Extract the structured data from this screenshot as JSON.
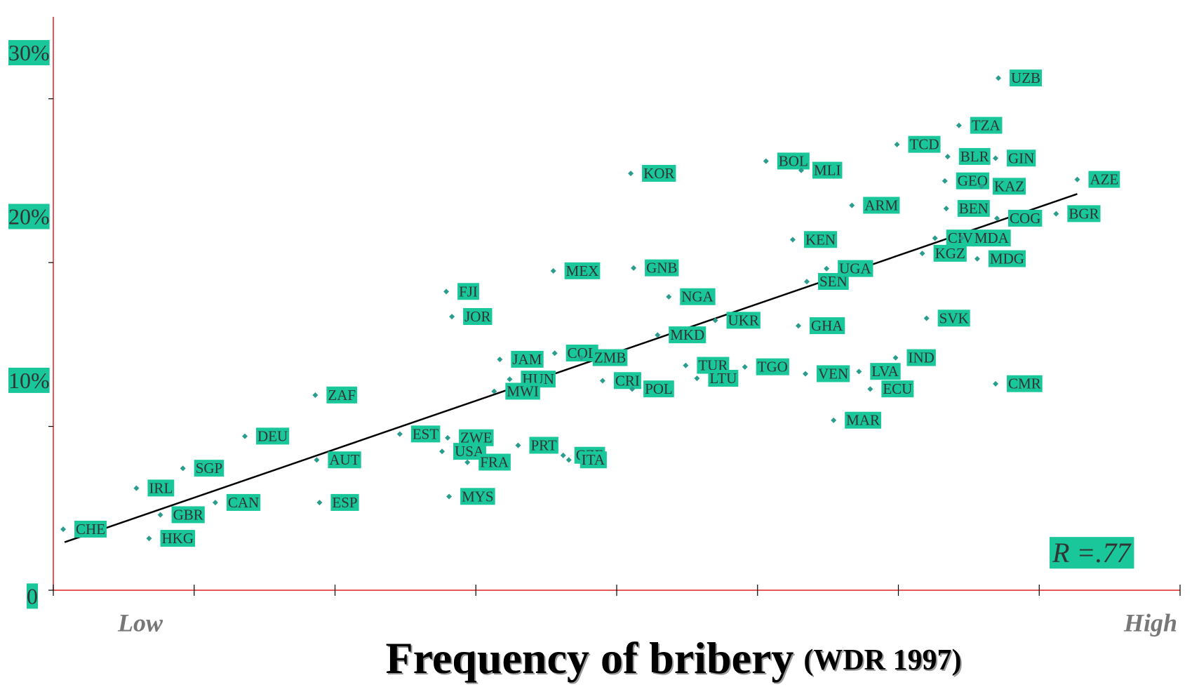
{
  "chart_data": {
    "type": "scatter",
    "title": "Frequency of bribery",
    "title_note": "(WDR 1997)",
    "x_low_label": "Low",
    "x_high_label": "High",
    "annotation": "R =.77",
    "xlim": [
      0,
      8
    ],
    "xticks": [
      0,
      1,
      2,
      3,
      4,
      5,
      6,
      7,
      8
    ],
    "ylim": [
      0,
      35
    ],
    "yticks": [
      0,
      {
        "value": 10,
        "label": "10%"
      },
      {
        "value": 20,
        "label": "20%"
      },
      {
        "value": 30,
        "label": "30%"
      }
    ],
    "color": "#2a9d8f",
    "label_color": "#19c79a",
    "axis_color": "#dd2222",
    "line_color": "#000000",
    "point_labels": [
      "CHE",
      "IRL",
      "GBR",
      "HKG",
      "SGP",
      "CAN",
      "DEU",
      "ZAF",
      "AUT",
      "ESP",
      "EST",
      "ZWE",
      "USA",
      "FRA",
      "MYS",
      "FJI",
      "JOR",
      "JAM",
      "HUN",
      "MWI",
      "PRT",
      "CZE",
      "ITA",
      "MEX",
      "COL",
      "ZMB",
      "CRI",
      "KOR",
      "GNB",
      "POL",
      "NGA",
      "MKD",
      "UKR",
      "TUR",
      "LTU",
      "TGO",
      "BOL",
      "MLI",
      "KEN",
      "ARM",
      "GHA",
      "SEN",
      "UGA",
      "VEN",
      "MAR",
      "LVA",
      "ECU",
      "IND",
      "TCD",
      "TZA",
      "BLR",
      "GEO",
      "GIN",
      "KAZ",
      "BEN",
      "CIV",
      "MDA",
      "KGZ",
      "MDG",
      "COG",
      "SVK",
      "UZB",
      "AZE",
      "BGR",
      "CMR"
    ],
    "x": [
      0.07,
      0.59,
      0.76,
      0.68,
      0.92,
      1.15,
      1.36,
      1.86,
      1.87,
      1.89,
      2.46,
      2.8,
      2.76,
      2.94,
      2.81,
      2.79,
      2.83,
      3.17,
      3.24,
      3.13,
      3.3,
      3.62,
      3.66,
      3.55,
      3.56,
      3.75,
      3.9,
      4.1,
      4.12,
      4.11,
      4.37,
      4.29,
      4.7,
      4.49,
      4.57,
      4.91,
      5.06,
      5.31,
      5.25,
      5.67,
      5.29,
      5.35,
      5.49,
      5.34,
      5.54,
      5.72,
      5.8,
      5.98,
      5.99,
      6.43,
      6.35,
      6.33,
      6.69,
      6.59,
      6.34,
      6.26,
      6.45,
      6.17,
      6.56,
      6.7,
      6.2,
      6.71,
      7.27,
      7.12,
      6.69
    ],
    "values": [
      3.72,
      6.23,
      4.6,
      3.16,
      7.44,
      5.35,
      9.4,
      11.91,
      7.95,
      5.35,
      9.53,
      9.3,
      8.47,
      7.81,
      5.72,
      18.23,
      16.7,
      14.09,
      12.88,
      12.14,
      8.84,
      8.23,
      7.95,
      19.49,
      14.47,
      14.19,
      12.79,
      25.44,
      19.67,
      12.28,
      17.91,
      15.58,
      16.47,
      13.72,
      12.93,
      13.63,
      26.19,
      25.63,
      21.4,
      23.49,
      16.14,
      18.84,
      19.63,
      13.21,
      10.37,
      13.35,
      12.28,
      14.19,
      27.21,
      28.37,
      26.47,
      24.98,
      26.37,
      24.65,
      23.3,
      21.49,
      21.49,
      20.56,
      20.23,
      22.7,
      16.6,
      31.26,
      25.07,
      22.98,
      12.6
    ],
    "trend": {
      "x": [
        0.08,
        7.27
      ],
      "y": [
        2.93,
        24.19
      ]
    }
  }
}
